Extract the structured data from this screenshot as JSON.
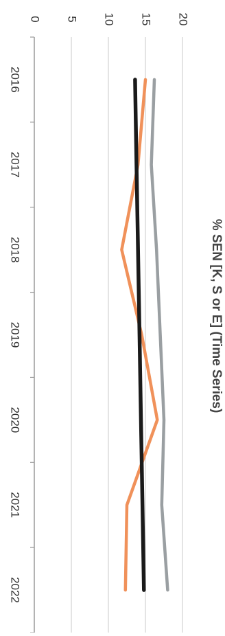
{
  "chart_data": {
    "type": "line",
    "title": "% SEN [K, S or E] (Time Series)",
    "xlabel": "",
    "ylabel": "",
    "x": [
      "2016",
      "2017",
      "2018",
      "2019",
      "2020",
      "2021",
      "2022"
    ],
    "ylim": [
      0,
      20
    ],
    "yticks": [
      "0",
      "5",
      "10",
      "15",
      "20"
    ],
    "grid": true,
    "legend": "none",
    "orientation": "rotated-90-clockwise",
    "series": [
      {
        "color": "#9a9fa2",
        "values": [
          16.2,
          15.8,
          16.5,
          17.0,
          17.5,
          17.2,
          18.0
        ]
      },
      {
        "color": "#f0915a",
        "values": [
          15.0,
          14.0,
          11.8,
          14.5,
          16.6,
          12.5,
          12.3
        ]
      },
      {
        "color": "#1a1a1a",
        "values": [
          13.6,
          13.8,
          14.0,
          14.2,
          14.4,
          14.6,
          14.8
        ]
      }
    ]
  }
}
